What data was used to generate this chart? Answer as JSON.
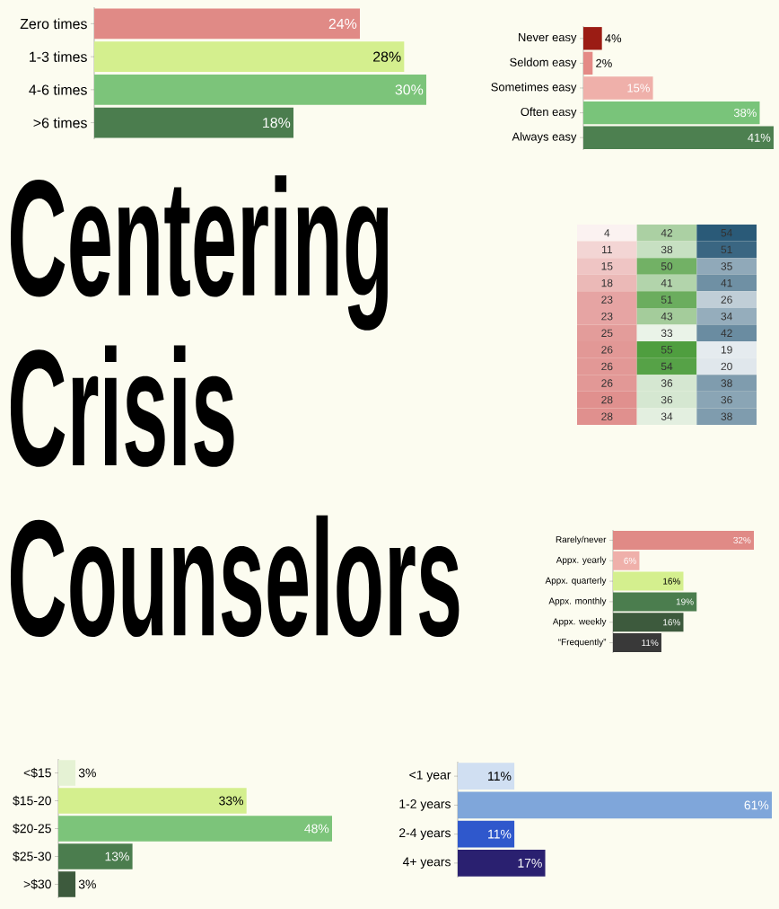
{
  "chart_data": [
    {
      "type": "bar",
      "orientation": "horizontal",
      "categories": [
        "Zero times",
        "1-3 times",
        "4-6 times",
        ">6 times"
      ],
      "values": [
        24,
        28,
        30,
        18
      ],
      "value_labels": [
        "24%",
        "28%",
        "30%",
        "18%"
      ],
      "colors": [
        "#e08a86",
        "#d4ef8e",
        "#7cc47a",
        "#4b7d4e"
      ]
    },
    {
      "type": "bar",
      "orientation": "horizontal",
      "categories": [
        "Never easy",
        "Seldom easy",
        "Sometimes easy",
        "Often easy",
        "Always easy"
      ],
      "values": [
        4,
        2,
        15,
        38,
        41
      ],
      "value_labels": [
        "4%",
        "2%",
        "15%",
        "38%",
        "41%"
      ],
      "colors": [
        "#9b1c14",
        "#e48a86",
        "#efb0aa",
        "#79c47a",
        "#4d8050"
      ]
    },
    {
      "type": "other",
      "title": "Centering Crisis Counselors"
    },
    {
      "type": "heatmap",
      "categories": [
        null,
        null,
        null
      ],
      "y_categories": [
        null,
        null,
        null,
        null,
        null,
        null,
        null,
        null,
        null,
        null,
        null,
        null
      ],
      "tick_labels": false,
      "data_labels": true,
      "colors": [
        "#e0908e",
        "#4f9e3f",
        "#2a5a78"
      ],
      "cells": [
        [
          4,
          42,
          54
        ],
        [
          11,
          38,
          51
        ],
        [
          15,
          50,
          35
        ],
        [
          18,
          41,
          41
        ],
        [
          23,
          51,
          26
        ],
        [
          23,
          43,
          34
        ],
        [
          25,
          33,
          42
        ],
        [
          26,
          55,
          19
        ],
        [
          26,
          54,
          20
        ],
        [
          26,
          36,
          38
        ],
        [
          28,
          36,
          36
        ],
        [
          28,
          34,
          38
        ]
      ]
    },
    {
      "type": "bar",
      "orientation": "horizontal",
      "categories": [
        "Rarely/never",
        "Appx. yearly",
        "Appx. quarterly",
        "Appx. monthly",
        "Appx. weekly",
        "“Frequently”"
      ],
      "values": [
        32,
        6,
        16,
        19,
        16,
        11
      ],
      "value_labels": [
        "32%",
        "6%",
        "16%",
        "19%",
        "16%",
        "11%"
      ],
      "colors": [
        "#e08a86",
        "#efb0aa",
        "#d4ef8e",
        "#4b7d4e",
        "#3d5a3d",
        "#393939"
      ]
    },
    {
      "type": "bar",
      "orientation": "horizontal",
      "categories": [
        "<$15",
        "$15-20",
        "$20-25",
        "$25-30",
        ">$30"
      ],
      "values": [
        3,
        33,
        48,
        13,
        3
      ],
      "value_labels": [
        "3%",
        "33%",
        "48%",
        "13%",
        "3%"
      ],
      "colors": [
        "#e5f2d4",
        "#d4ef8e",
        "#7cc47a",
        "#4b7d4e",
        "#3d5a3d"
      ]
    },
    {
      "type": "bar",
      "orientation": "horizontal",
      "categories": [
        "<1 year",
        "1-2 years",
        "2-4 years",
        "4+ years"
      ],
      "values": [
        11,
        61,
        11,
        17
      ],
      "value_labels": [
        "11%",
        "61%",
        "11%",
        "17%"
      ],
      "colors": [
        "#d0dff2",
        "#7fa6da",
        "#2f58cc",
        "#2a2070"
      ]
    }
  ]
}
